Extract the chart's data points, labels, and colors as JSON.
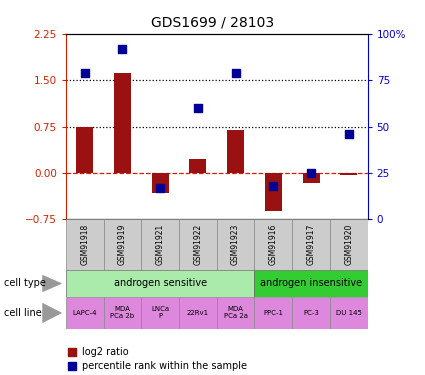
{
  "title": "GDS1699 / 28103",
  "samples": [
    "GSM91918",
    "GSM91919",
    "GSM91921",
    "GSM91922",
    "GSM91923",
    "GSM91916",
    "GSM91917",
    "GSM91920"
  ],
  "log2_ratio": [
    0.75,
    1.62,
    -0.32,
    0.22,
    0.7,
    -0.62,
    -0.17,
    -0.03
  ],
  "percentile_rank": [
    79,
    92,
    17,
    60,
    79,
    18,
    25,
    46
  ],
  "cell_type_groups": [
    {
      "label": "androgen sensitive",
      "start": 0,
      "end": 5,
      "color": "#aaeaaa"
    },
    {
      "label": "androgen insensitive",
      "start": 5,
      "end": 8,
      "color": "#33cc33"
    }
  ],
  "cell_lines": [
    "LAPC-4",
    "MDA\nPCa 2b",
    "LNCa\nP",
    "22Rv1",
    "MDA\nPCa 2a",
    "PPC-1",
    "PC-3",
    "DU 145"
  ],
  "cell_line_color": "#dd88dd",
  "sample_bg_color": "#cccccc",
  "bar_color": "#991111",
  "dot_color": "#000099",
  "ylim_left": [
    -0.75,
    2.25
  ],
  "ylim_right": [
    0,
    100
  ],
  "yticks_left": [
    -0.75,
    0,
    0.75,
    1.5,
    2.25
  ],
  "yticks_right": [
    0,
    25,
    50,
    75,
    100
  ],
  "ytick_right_labels": [
    "0",
    "25",
    "50",
    "75",
    "100%"
  ],
  "hline1": 1.5,
  "hline2": 0.75,
  "hline0": 0.0,
  "left_label_color": "#cc2200",
  "right_label_color": "#0000cc",
  "n_samples": 8
}
